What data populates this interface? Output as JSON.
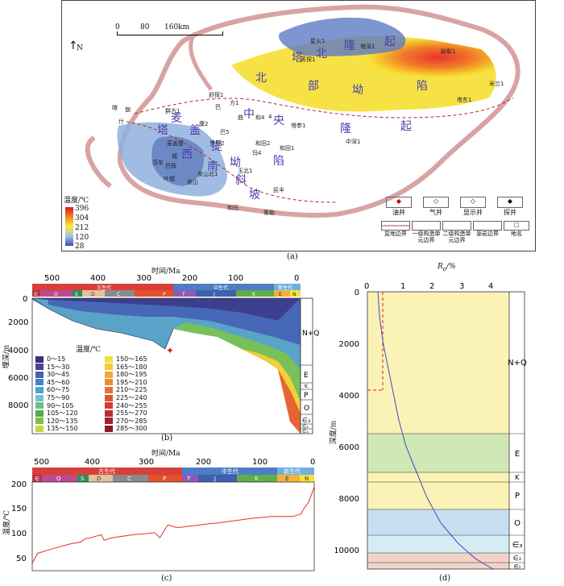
{
  "panel_a": {
    "caption": "(a)",
    "north": "N",
    "scale": {
      "ticks": [
        "0",
        "80",
        "160km"
      ]
    },
    "regions": [
      "塔",
      "北",
      "隆",
      "起",
      "北",
      "部",
      "坳",
      "陷",
      "中",
      "央",
      "隆",
      "起",
      "塔",
      "西",
      "南",
      "坳",
      "陷",
      "麦",
      "盖",
      "提",
      "斜",
      "坡"
    ],
    "wells": [
      "星火1",
      "塔深1",
      "英探1",
      "尉犁1",
      "米兰1",
      "塔东1",
      "舒探1",
      "群古1",
      "巴",
      "方1",
      "曲",
      "4",
      "康2",
      "巴5",
      "和4",
      "玛4",
      "塔参1",
      "中深1",
      "罗斯2",
      "和田2",
      "和田1",
      "麦盖提",
      "莎车",
      "巴探",
      "叶城",
      "皮山北1",
      "皮山",
      "玉北1",
      "民丰",
      "和田",
      "策勒",
      "伽",
      "喀",
      "什",
      "城"
    ],
    "temp_legend": {
      "title": "温度/℃",
      "ticks": [
        "396",
        "304",
        "212",
        "120",
        "28"
      ]
    },
    "symbols": [
      {
        "label": "油井"
      },
      {
        "label": "气井"
      },
      {
        "label": "显示井"
      },
      {
        "label": "探井"
      },
      {
        "label": "盆地边界"
      },
      {
        "label": "一级构造单元边界"
      },
      {
        "label": "二级构造单元边界"
      },
      {
        "label": "源岩边界"
      },
      {
        "label": "地名"
      }
    ]
  },
  "panel_b": {
    "caption": "(b)",
    "x_title": "时间/Ma",
    "y_title": "埋深/m",
    "x_ticks": [
      "500",
      "400",
      "300",
      "200",
      "100",
      "0"
    ],
    "y_ticks": [
      "0",
      "2000",
      "4000",
      "6000",
      "8000"
    ],
    "eras": [
      "古生代",
      "中生代",
      "新生代"
    ],
    "periods": [
      "∈",
      "O",
      "S",
      "D",
      "C",
      "P",
      "T",
      "J",
      "K",
      "E",
      "N"
    ],
    "strata": [
      "N+Q",
      "E",
      "K",
      "P",
      "O",
      "∈₃",
      "∈₂",
      "∈₁"
    ],
    "legend_title": "温度/℃",
    "legend": [
      {
        "label": "0～15",
        "color": "#3a2f7a"
      },
      {
        "label": "15～30",
        "color": "#4b3f9a"
      },
      {
        "label": "30～45",
        "color": "#4a5fb5"
      },
      {
        "label": "45～60",
        "color": "#3f86c4"
      },
      {
        "label": "60～75",
        "color": "#4aa6d0"
      },
      {
        "label": "75～90",
        "color": "#6cc3cf"
      },
      {
        "label": "90～105",
        "color": "#6bbf8e"
      },
      {
        "label": "105～120",
        "color": "#58a84e"
      },
      {
        "label": "120～135",
        "color": "#7fbf3f"
      },
      {
        "label": "135～150",
        "color": "#c7d93a"
      },
      {
        "label": "150～165",
        "color": "#f0e23a"
      },
      {
        "label": "165～180",
        "color": "#f6c935"
      },
      {
        "label": "180～195",
        "color": "#f3a83a"
      },
      {
        "label": "195～210",
        "color": "#ee8c38"
      },
      {
        "label": "210～225",
        "color": "#e87035"
      },
      {
        "label": "225～240",
        "color": "#df5433"
      },
      {
        "label": "240～255",
        "color": "#d33b31"
      },
      {
        "label": "255～270",
        "color": "#c12a2f"
      },
      {
        "label": "270～285",
        "color": "#a81f2c"
      },
      {
        "label": "285～300",
        "color": "#8a1a28"
      }
    ]
  },
  "panel_c": {
    "caption": "(c)",
    "x_title": "时间/Ma",
    "y_title": "温度/℃",
    "x_ticks": [
      "500",
      "400",
      "300",
      "200",
      "100",
      "0"
    ],
    "y_ticks": [
      "50",
      "100",
      "150",
      "200"
    ],
    "eras": [
      "古生代",
      "中生代",
      "新生代"
    ],
    "periods": [
      "∈",
      "O",
      "S",
      "D",
      "C",
      "P",
      "T",
      "J",
      "K",
      "E",
      "N"
    ]
  },
  "panel_d": {
    "caption": "(d)",
    "x_title": "R_o/%",
    "y_title": "深度/m",
    "x_ticks": [
      "0",
      "1",
      "2",
      "3",
      "4"
    ],
    "y_ticks": [
      "0",
      "2000",
      "4000",
      "6000",
      "8000",
      "10000"
    ],
    "strata": [
      "N+Q",
      "E",
      "K",
      "P",
      "O",
      "∈₃",
      "∈₂",
      "∈₁"
    ]
  },
  "chart_data": [
    {
      "type": "line",
      "panel": "c",
      "x": [
        530,
        520,
        500,
        480,
        460,
        440,
        430,
        420,
        410,
        400,
        395,
        380,
        360,
        340,
        320,
        300,
        290,
        280,
        275,
        260,
        250,
        240,
        220,
        200,
        180,
        160,
        140,
        120,
        100,
        80,
        60,
        40,
        25,
        20,
        10,
        5,
        0
      ],
      "y": [
        45,
        65,
        72,
        78,
        84,
        88,
        95,
        97,
        100,
        103,
        92,
        97,
        100,
        103,
        105,
        107,
        97,
        115,
        123,
        118,
        118,
        120,
        122,
        125,
        127,
        130,
        133,
        136,
        138,
        140,
        140,
        140,
        145,
        155,
        170,
        185,
        200
      ],
      "xlim": [
        530,
        0
      ],
      "ylim": [
        30,
        210
      ],
      "xlabel": "时间/Ma",
      "ylabel": "温度/℃"
    },
    {
      "type": "line",
      "panel": "d",
      "x": [
        0.3,
        0.35,
        0.45,
        0.6,
        0.75,
        0.9,
        1.1,
        1.4,
        1.7,
        2.1,
        2.6,
        3.1,
        3.6
      ],
      "y": [
        0,
        1000,
        2000,
        3000,
        4000,
        5000,
        6000,
        7000,
        8000,
        9000,
        9800,
        10400,
        10800
      ],
      "xlim": [
        0,
        4.5
      ],
      "ylim": [
        10800,
        0
      ],
      "xlabel": "R_o/%",
      "ylabel": "深度/m"
    }
  ]
}
